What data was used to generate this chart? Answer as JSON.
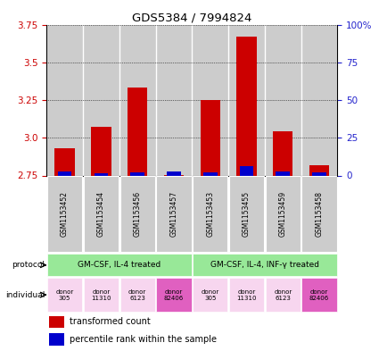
{
  "title": "GDS5384 / 7994824",
  "samples": [
    "GSM1153452",
    "GSM1153454",
    "GSM1153456",
    "GSM1153457",
    "GSM1153453",
    "GSM1153455",
    "GSM1153459",
    "GSM1153458"
  ],
  "red_values": [
    2.93,
    3.07,
    3.33,
    2.755,
    3.25,
    3.67,
    3.04,
    2.82
  ],
  "blue_values": [
    2.775,
    2.762,
    2.773,
    2.775,
    2.773,
    2.812,
    2.778,
    2.772
  ],
  "y_min": 2.75,
  "y_max": 3.75,
  "y_ticks": [
    2.75,
    3.0,
    3.25,
    3.5,
    3.75
  ],
  "y_right_ticks": [
    0,
    25,
    50,
    75,
    100
  ],
  "y_right_labels": [
    "0",
    "25",
    "50",
    "75",
    "100%"
  ],
  "protocol_labels": [
    "GM-CSF, IL-4 treated",
    "GM-CSF, IL-4, INF-γ treated"
  ],
  "individual_labels": [
    "donor\n305",
    "donor\n11310",
    "donor\n6123",
    "donor\n82406",
    "donor\n305",
    "donor\n11310",
    "donor\n6123",
    "donor\n82406"
  ],
  "individual_colors": [
    "#f7d6ef",
    "#f7d6ef",
    "#f7d6ef",
    "#e060c0",
    "#f7d6ef",
    "#f7d6ef",
    "#f7d6ef",
    "#e060c0"
  ],
  "protocol_color": "#98e898",
  "bar_bg_color": "#cccccc",
  "red_color": "#cc0000",
  "blue_color": "#0000cc",
  "bar_width": 0.55,
  "grid_color": "#333333",
  "text_color_left": "#cc0000",
  "text_color_right": "#2222cc"
}
